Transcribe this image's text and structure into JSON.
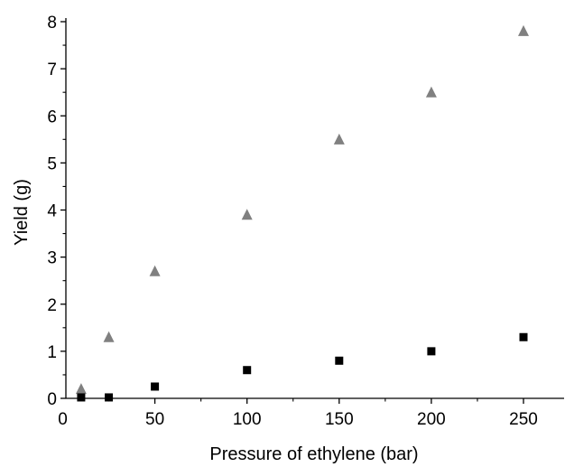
{
  "chart_data": {
    "type": "scatter",
    "xlabel": "Pressure of ethylene (bar)",
    "ylabel": "Yield (g)",
    "xlim": [
      0,
      275
    ],
    "ylim": [
      0,
      8
    ],
    "x_ticks": [
      0,
      50,
      100,
      150,
      200,
      250
    ],
    "x_tick_labels": [
      "0",
      "50",
      "100",
      "150",
      "200",
      "250"
    ],
    "y_ticks": [
      0,
      1,
      2,
      3,
      4,
      5,
      6,
      7,
      8
    ],
    "y_tick_labels": [
      "0",
      "1",
      "2",
      "3",
      "4",
      "5",
      "6",
      "7",
      "8"
    ],
    "grid": false,
    "series": [
      {
        "marker": "triangle",
        "color": "#808080",
        "x": [
          10,
          25,
          50,
          100,
          150,
          200,
          250
        ],
        "y": [
          0.2,
          1.3,
          2.7,
          3.9,
          5.5,
          6.5,
          7.8
        ]
      },
      {
        "marker": "square",
        "color": "#000000",
        "x": [
          10,
          25,
          50,
          100,
          150,
          200,
          250
        ],
        "y": [
          0.02,
          0.02,
          0.25,
          0.6,
          0.8,
          1.0,
          1.3
        ]
      }
    ]
  }
}
